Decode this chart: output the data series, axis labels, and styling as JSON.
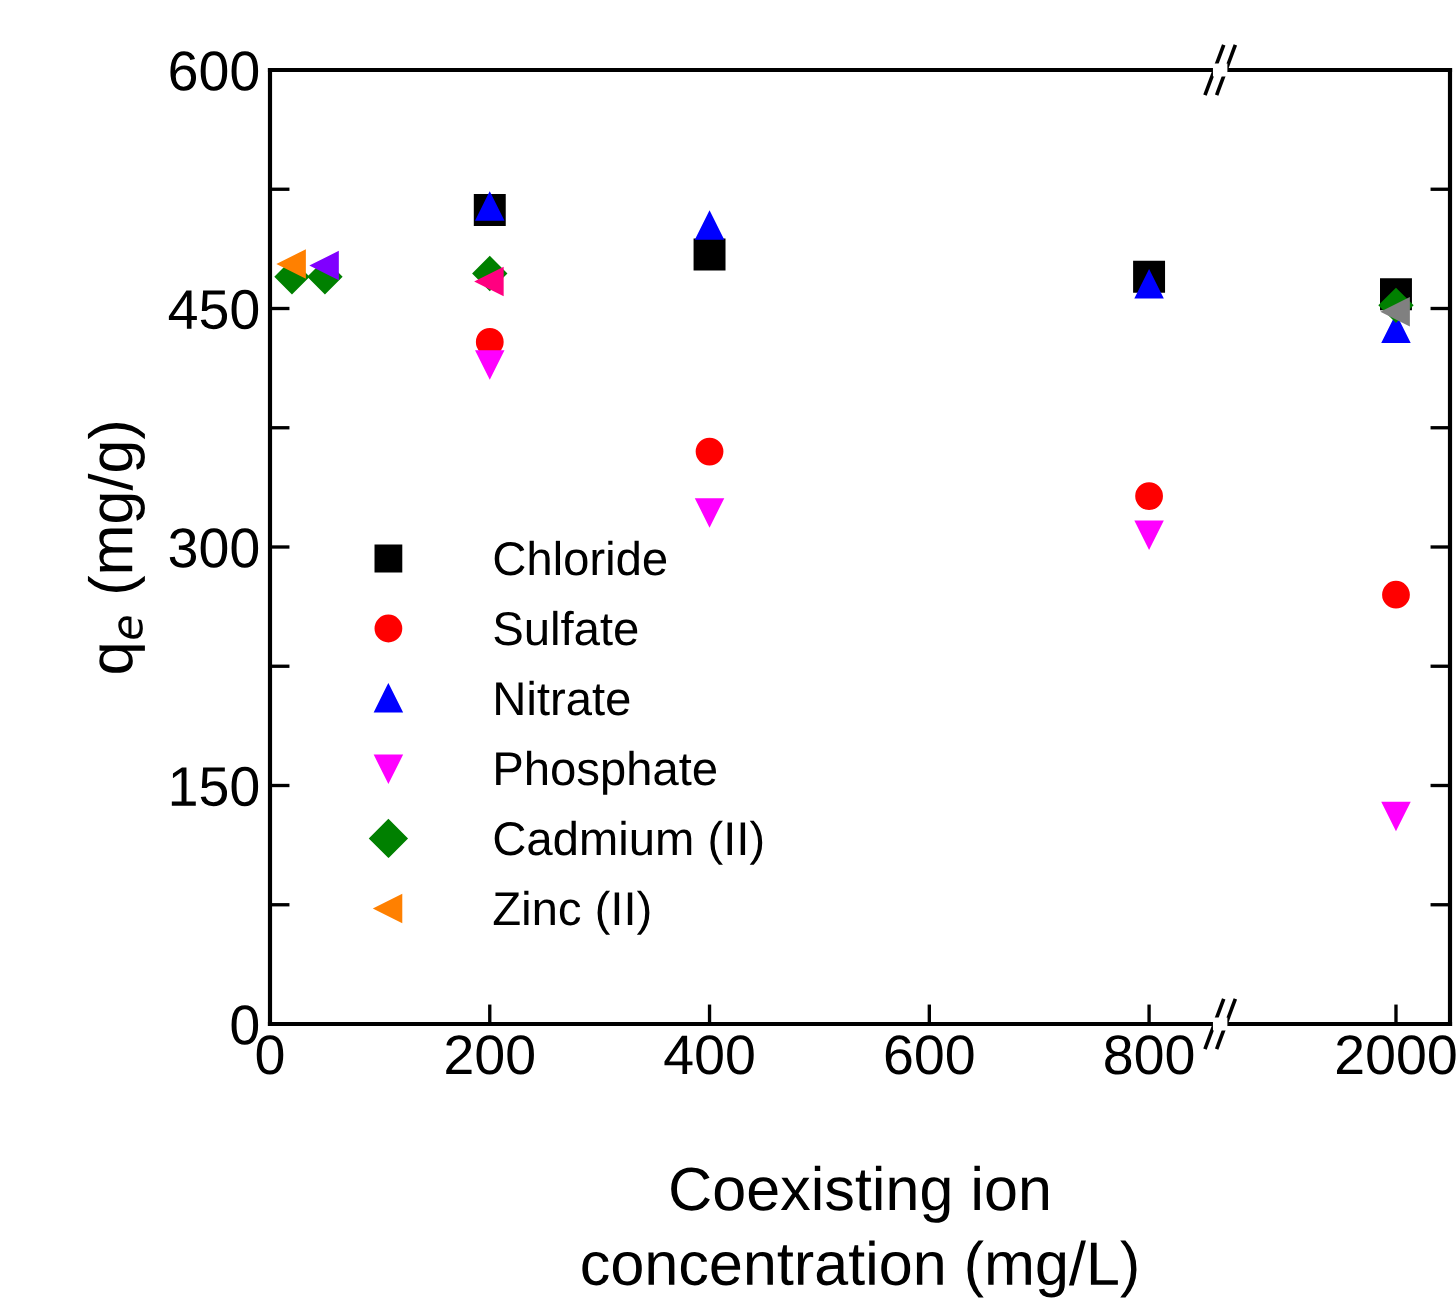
{
  "chart_data": [
    {
      "type": "scatter",
      "xlabel": "Coexisting ion\nconcentration (mg/L)",
      "ylabel": "q$_{e}$ (mg/g)",
      "xlim": [
        0,
        870
      ],
      "xticks": [
        0,
        200,
        400,
        600,
        800
      ],
      "ylim": [
        0,
        600
      ],
      "yticks": [
        0,
        {
          "value": 75,
          "label": null
        },
        150,
        {
          "value": 225,
          "label": null
        },
        300,
        {
          "value": 375,
          "label": null
        },
        450,
        {
          "value": 525,
          "label": null
        },
        600
      ],
      "grid": false,
      "legend": "left",
      "series": [
        {
          "name": "Chloride",
          "color": "#000000",
          "marker": "square",
          "x": [
            200,
            400,
            800
          ],
          "values": [
            512,
            484,
            470
          ]
        },
        {
          "name": "Sulfate",
          "color": "#ff0000",
          "marker": "circle",
          "x": [
            200,
            400,
            800
          ],
          "values": [
            429,
            360,
            332
          ]
        },
        {
          "name": "Nitrate",
          "color": "#0000ff",
          "marker": "triangle-up",
          "x": [
            200,
            400,
            800
          ],
          "values": [
            514,
            502,
            465
          ]
        },
        {
          "name": "Phosphate",
          "color": "#ff00ff",
          "marker": "triangle-down",
          "x": [
            200,
            400,
            800
          ],
          "values": [
            415,
            322,
            308
          ]
        },
        {
          "name": "Cadmium (II)",
          "color": "#008000",
          "marker": "diamond",
          "x": [
            20,
            50,
            200
          ],
          "values": [
            470,
            470,
            472
          ]
        },
        {
          "name": "Zinc (II)",
          "color": "#ff8000",
          "colors": [
            "#ff8000",
            "#8000ff",
            "#ff0080"
          ],
          "marker": "triangle-left",
          "x": [
            20,
            50,
            200
          ],
          "values": [
            478,
            477,
            467
          ]
        }
      ]
    },
    {
      "type": "scatter",
      "categories": [
        "2000"
      ],
      "ylim": [
        0,
        600
      ],
      "yticks": [
        0,
        {
          "value": 75,
          "label": null
        },
        150,
        {
          "value": 225,
          "label": null
        },
        300,
        {
          "value": 375,
          "label": null
        },
        450,
        {
          "value": 525,
          "label": null
        },
        600
      ],
      "tick_labels": "x",
      "grid": false,
      "series": [
        {
          "color": "#000000",
          "marker": "square",
          "values": [
            459
          ]
        },
        {
          "color": "#ff0000",
          "marker": "circle",
          "values": [
            270
          ]
        },
        {
          "color": "#0000ff",
          "marker": "triangle-up",
          "values": [
            437
          ]
        },
        {
          "color": "#ff00ff",
          "marker": "triangle-down",
          "values": [
            131
          ]
        },
        {
          "color": "#008000",
          "marker": "diamond",
          "values": [
            452
          ]
        },
        {
          "color": "#808080",
          "marker": "triangle-left",
          "values": [
            448
          ]
        }
      ]
    }
  ]
}
